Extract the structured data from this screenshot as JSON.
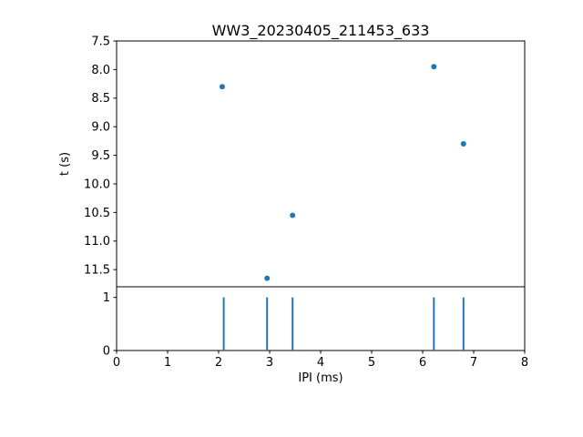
{
  "figure": {
    "title": "WW3_20230405_211453_633",
    "ylabel": "t (s)",
    "xlabel": "IPI (ms)"
  },
  "chart_data": [
    {
      "type": "scatter",
      "title": "WW3_20230405_211453_633",
      "ylabel": "t (s)",
      "x": [
        2.07,
        2.95,
        3.45,
        6.22,
        6.8
      ],
      "y": [
        8.3,
        11.65,
        10.55,
        7.95,
        9.3
      ],
      "xlim": [
        0,
        8
      ],
      "y_top": 7.5,
      "y_bottom": 11.8,
      "y_axis_inverted": true,
      "yticks": [
        "7.5",
        "8.0",
        "8.5",
        "9.0",
        "9.5",
        "10.0",
        "10.5",
        "11.0",
        "11.5"
      ],
      "xticks": [],
      "grid": false,
      "legend": false,
      "marker_color": "#1f77b4"
    },
    {
      "type": "stem",
      "xlabel": "IPI (ms)",
      "x": [
        2.1,
        2.95,
        3.45,
        6.22,
        6.8
      ],
      "values": [
        1,
        1,
        1,
        1,
        1
      ],
      "xlim": [
        0,
        8
      ],
      "y_top": 1.2,
      "y_bottom": 0,
      "xticks": [
        "0",
        "1",
        "2",
        "3",
        "4",
        "5",
        "6",
        "7",
        "8"
      ],
      "yticks": [
        "0",
        "1"
      ],
      "grid": false,
      "legend": false,
      "line_color": "#1f77b4"
    }
  ]
}
